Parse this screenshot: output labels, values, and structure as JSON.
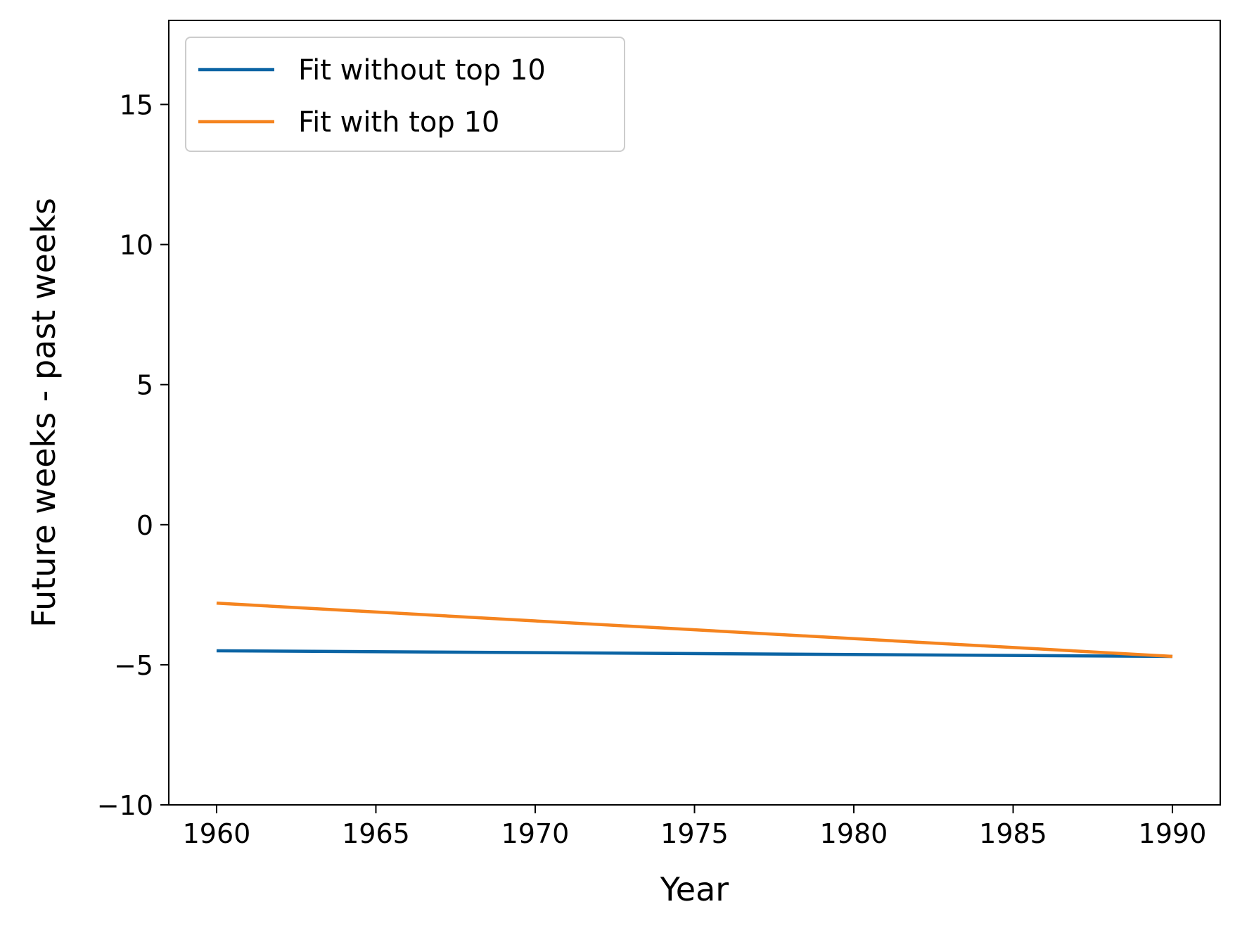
{
  "chart_data": {
    "type": "line",
    "title": "",
    "xlabel": "Year",
    "ylabel": "Future weeks - past weeks",
    "xlim": [
      1958.5,
      1991.5
    ],
    "ylim": [
      -10,
      18
    ],
    "xticks": [
      1960,
      1965,
      1970,
      1975,
      1980,
      1985,
      1990
    ],
    "xtick_labels": [
      "1960",
      "1965",
      "1970",
      "1975",
      "1980",
      "1985",
      "1990"
    ],
    "yticks": [
      -10,
      -5,
      0,
      5,
      10,
      15
    ],
    "ytick_labels": [
      "−10",
      "−5",
      "0",
      "5",
      "10",
      "15"
    ],
    "grid": false,
    "legend": {
      "position": "upper-left"
    },
    "series": [
      {
        "name": "Fit without top 10",
        "color": "#0b64a4",
        "x": [
          1960,
          1990
        ],
        "y": [
          -4.5,
          -4.7
        ]
      },
      {
        "name": "Fit with top 10",
        "color": "#f5841f",
        "x": [
          1960,
          1990
        ],
        "y": [
          -2.8,
          -4.7
        ]
      }
    ]
  }
}
